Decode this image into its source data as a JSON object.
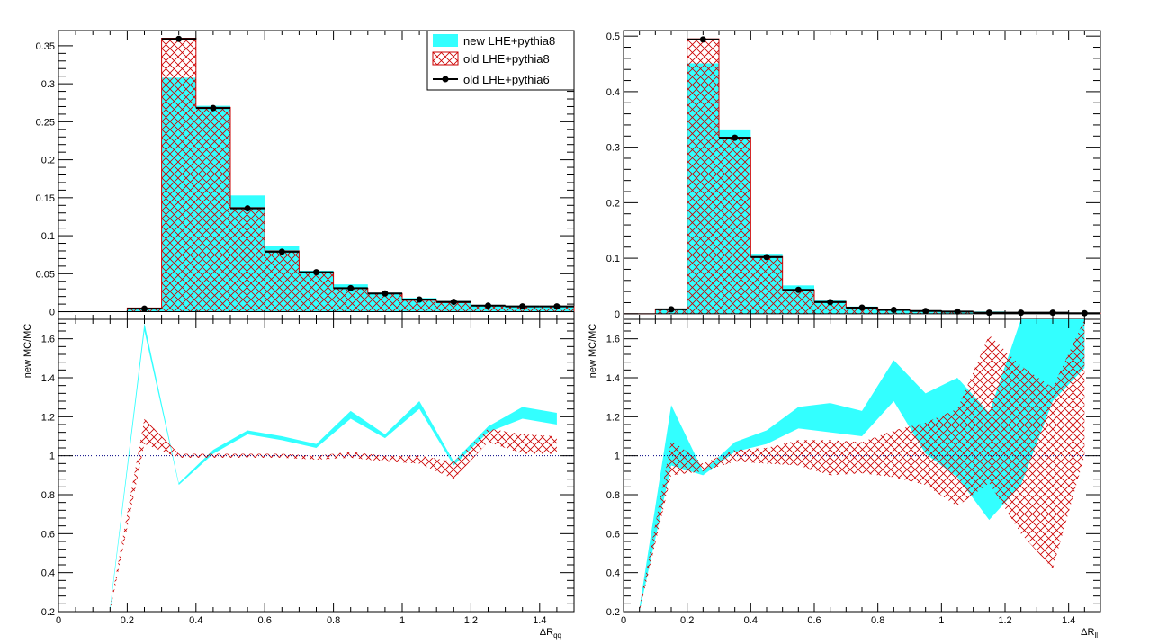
{
  "colors": {
    "new_fill": "#33ffff",
    "old8_hatch": "#cc0000",
    "old6_line": "#000000",
    "ref_line": "#000080"
  },
  "legend": {
    "entries": [
      {
        "label": "new LHE+pythia8",
        "style": "fill"
      },
      {
        "label": "old LHE+pythia8",
        "style": "hatch"
      },
      {
        "label": "old LHE+pythia6",
        "style": "marker"
      }
    ],
    "placement": "top-right"
  },
  "chart_data": [
    {
      "id": "left-top",
      "type": "histogram",
      "xlim": [
        0,
        1.5
      ],
      "ylim": [
        -0.01,
        0.37
      ],
      "yticks": [
        0,
        0.05,
        0.1,
        0.15,
        0.2,
        0.25,
        0.3,
        0.35
      ],
      "ytick_labels": [
        "0",
        "0.05",
        "0.1",
        "0.15",
        "0.2",
        "0.25",
        "0.3",
        "0.35"
      ],
      "bin_width": 0.1,
      "bin_low_edges": [
        0.0,
        0.1,
        0.2,
        0.3,
        0.4,
        0.5,
        0.6,
        0.7,
        0.8,
        0.9,
        1.0,
        1.1,
        1.2,
        1.3,
        1.4
      ],
      "series": [
        {
          "name": "new LHE+pythia8",
          "style": "fill",
          "values": [
            0,
            0,
            0.004,
            0.308,
            0.271,
            0.153,
            0.086,
            0.054,
            0.036,
            0.025,
            0.018,
            0.014,
            0.009,
            0.008,
            0.007
          ]
        },
        {
          "name": "old LHE+pythia8",
          "style": "hatch",
          "values": [
            0,
            0,
            0.005,
            0.36,
            0.269,
            0.137,
            0.08,
            0.052,
            0.031,
            0.024,
            0.015,
            0.012,
            0.008,
            0.007,
            0.007
          ]
        },
        {
          "name": "old LHE+pythia6",
          "style": "marker",
          "values": [
            null,
            null,
            0.004,
            0.359,
            0.268,
            0.136,
            0.079,
            0.052,
            0.031,
            0.024,
            0.016,
            0.013,
            0.008,
            0.007,
            0.007
          ]
        }
      ]
    },
    {
      "id": "left-bottom",
      "type": "ratio",
      "xlim": [
        0,
        1.5
      ],
      "ylim": [
        0.2,
        1.7
      ],
      "ylabel": "new MC/MC",
      "xlabel_main": "ΔR",
      "xlabel_sub": "qq",
      "xticks": [
        0,
        0.2,
        0.4,
        0.6,
        0.8,
        1.0,
        1.2,
        1.4
      ],
      "xtick_labels": [
        "0",
        "0.2",
        "0.4",
        "0.6",
        "0.8",
        "1",
        "1.2",
        "1.4"
      ],
      "yticks": [
        0.2,
        0.4,
        0.6,
        0.8,
        1.0,
        1.2,
        1.4,
        1.6
      ],
      "ytick_labels": [
        "0.2",
        "0.4",
        "0.6",
        "0.8",
        "1",
        "1.2",
        "1.4",
        "1.6"
      ],
      "reference": 1.0,
      "series": [
        {
          "name": "new LHE+pythia8",
          "style": "fill",
          "x": [
            0.15,
            0.25,
            0.35,
            0.45,
            0.55,
            0.65,
            0.75,
            0.85,
            0.95,
            1.05,
            1.15,
            1.25,
            1.35,
            1.45
          ],
          "lo": [
            0.2,
            1.64,
            0.85,
            1.01,
            1.11,
            1.08,
            1.04,
            1.19,
            1.09,
            1.24,
            0.95,
            1.12,
            1.19,
            1.16
          ],
          "hi": [
            0.22,
            1.68,
            0.86,
            1.03,
            1.13,
            1.1,
            1.06,
            1.23,
            1.11,
            1.28,
            0.97,
            1.15,
            1.25,
            1.22
          ]
        },
        {
          "name": "old LHE+pythia8",
          "style": "hatch",
          "x": [
            0.15,
            0.25,
            0.35,
            0.45,
            0.55,
            0.65,
            0.75,
            0.85,
            0.95,
            1.05,
            1.15,
            1.25,
            1.35,
            1.45
          ],
          "lo": [
            0.2,
            1.06,
            0.99,
            0.99,
            0.99,
            0.99,
            0.98,
            0.99,
            0.97,
            0.96,
            0.88,
            1.07,
            1.01,
            1.01
          ],
          "hi": [
            0.22,
            1.19,
            1.01,
            1.01,
            1.01,
            1.01,
            1.0,
            1.02,
            1.0,
            1.0,
            0.97,
            1.14,
            1.11,
            1.1
          ]
        }
      ]
    },
    {
      "id": "right-top",
      "type": "histogram",
      "xlim": [
        0,
        1.5
      ],
      "ylim": [
        -0.01,
        0.51
      ],
      "yticks": [
        0,
        0.1,
        0.2,
        0.3,
        0.4,
        0.5
      ],
      "ytick_labels": [
        "0",
        "0.1",
        "0.2",
        "0.3",
        "0.4",
        "0.5"
      ],
      "bin_width": 0.1,
      "bin_low_edges": [
        0.0,
        0.1,
        0.2,
        0.3,
        0.4,
        0.5,
        0.6,
        0.7,
        0.8,
        0.9,
        1.0,
        1.1,
        1.2,
        1.3,
        1.4
      ],
      "series": [
        {
          "name": "new LHE+pythia8",
          "style": "fill",
          "values": [
            0,
            0.009,
            0.451,
            0.332,
            0.108,
            0.051,
            0.024,
            0.013,
            0.009,
            0.006,
            0.005,
            0.004,
            0.003,
            0.003,
            0.002
          ]
        },
        {
          "name": "old LHE+pythia8",
          "style": "hatch",
          "values": [
            0,
            0.008,
            0.495,
            0.318,
            0.103,
            0.043,
            0.022,
            0.011,
            0.007,
            0.005,
            0.004,
            0.002,
            0.002,
            0.001,
            0.001
          ]
        },
        {
          "name": "old LHE+pythia6",
          "style": "marker",
          "values": [
            null,
            0.008,
            0.494,
            0.317,
            0.102,
            0.043,
            0.021,
            0.011,
            0.007,
            0.005,
            0.004,
            0.002,
            0.002,
            0.002,
            0.001
          ]
        }
      ]
    },
    {
      "id": "right-bottom",
      "type": "ratio",
      "xlim": [
        0,
        1.5
      ],
      "ylim": [
        0.2,
        1.7
      ],
      "ylabel": "new MC/MC",
      "xlabel_main": "ΔR",
      "xlabel_sub": "ll",
      "xticks": [
        0,
        0.2,
        0.4,
        0.6,
        0.8,
        1.0,
        1.2,
        1.4
      ],
      "xtick_labels": [
        "0",
        "0.2",
        "0.4",
        "0.6",
        "0.8",
        "1",
        "1.2",
        "1.4"
      ],
      "yticks": [
        0.2,
        0.4,
        0.6,
        0.8,
        1.0,
        1.2,
        1.4,
        1.6
      ],
      "ytick_labels": [
        "0.2",
        "0.4",
        "0.6",
        "0.8",
        "1",
        "1.2",
        "1.4",
        "1.6"
      ],
      "reference": 1.0,
      "series": [
        {
          "name": "new LHE+pythia8",
          "style": "fill",
          "x": [
            0.05,
            0.15,
            0.25,
            0.35,
            0.45,
            0.55,
            0.65,
            0.75,
            0.85,
            0.95,
            1.05,
            1.15,
            1.25,
            1.35,
            1.45
          ],
          "lo": [
            0.2,
            0.95,
            0.9,
            1.02,
            1.06,
            1.14,
            1.12,
            1.1,
            1.28,
            1.01,
            0.89,
            0.67,
            0.85,
            1.28,
            1.45
          ],
          "hi": [
            0.22,
            1.26,
            0.92,
            1.07,
            1.13,
            1.25,
            1.27,
            1.23,
            1.49,
            1.32,
            1.4,
            1.22,
            1.7,
            1.7,
            1.7
          ]
        },
        {
          "name": "old LHE+pythia8",
          "style": "hatch",
          "x": [
            0.05,
            0.15,
            0.25,
            0.35,
            0.45,
            0.55,
            0.65,
            0.75,
            0.85,
            0.95,
            1.05,
            1.15,
            1.25,
            1.35,
            1.45
          ],
          "lo": [
            0.2,
            0.9,
            0.92,
            0.97,
            0.96,
            0.95,
            0.9,
            0.91,
            0.89,
            0.85,
            0.74,
            0.86,
            0.6,
            0.42,
            1.0
          ],
          "hi": [
            0.22,
            1.08,
            0.96,
            1.03,
            1.04,
            1.08,
            1.08,
            1.07,
            1.13,
            1.17,
            1.24,
            1.62,
            1.46,
            1.35,
            1.7
          ]
        }
      ]
    }
  ]
}
